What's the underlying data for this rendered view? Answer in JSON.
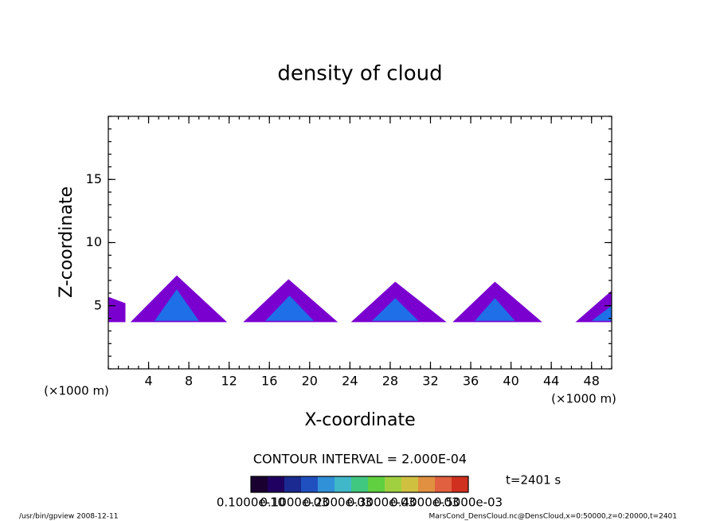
{
  "chart_data": {
    "type": "contour",
    "title": "density of cloud",
    "x_label": "X-coordinate",
    "y_label": "Z-coordinate",
    "x_unit": "(×1000 m)",
    "y_unit": "(×1000 m)",
    "xlim": [
      0,
      50
    ],
    "xticks": [
      4,
      8,
      12,
      16,
      20,
      24,
      28,
      32,
      36,
      40,
      44,
      48
    ],
    "ylim": [
      0,
      20
    ],
    "yticks": [
      5,
      10,
      15
    ],
    "cloud_color": "#7a00d0",
    "core_color": "#1f6fe8",
    "clouds": [
      {
        "x": [
          0,
          1.7,
          1.7,
          0
        ],
        "z": [
          3.7,
          3.7,
          5.2,
          5.7
        ]
      },
      {
        "x": [
          2.2,
          6.8,
          11.8
        ],
        "z": [
          3.7,
          7.4,
          3.7
        ]
      },
      {
        "x": [
          13.4,
          17.9,
          22.8
        ],
        "z": [
          3.7,
          7.1,
          3.7
        ]
      },
      {
        "x": [
          24.1,
          28.5,
          33.6
        ],
        "z": [
          3.7,
          6.9,
          3.7
        ]
      },
      {
        "x": [
          34.2,
          38.4,
          43.1
        ],
        "z": [
          3.7,
          6.9,
          3.7
        ]
      },
      {
        "x": [
          46.4,
          50,
          50
        ],
        "z": [
          3.7,
          6.2,
          3.7
        ]
      }
    ],
    "cores": [
      {
        "x": [
          4.6,
          6.8,
          9.0
        ],
        "z": [
          3.8,
          6.3,
          3.8
        ]
      },
      {
        "x": [
          15.6,
          18.0,
          20.4
        ],
        "z": [
          3.8,
          5.8,
          3.8
        ]
      },
      {
        "x": [
          26.2,
          28.5,
          30.8
        ],
        "z": [
          3.8,
          5.6,
          3.8
        ]
      },
      {
        "x": [
          36.4,
          38.4,
          40.4
        ],
        "z": [
          3.8,
          5.6,
          3.8
        ]
      },
      {
        "x": [
          48.0,
          50,
          50
        ],
        "z": [
          3.8,
          5.0,
          3.8
        ]
      }
    ],
    "contour_interval": "CONTOUR INTERVAL = 2.000E-04",
    "time_label": "t=2401 s",
    "colorbar_colors": [
      "#1a0030",
      "#200060",
      "#1a2a90",
      "#2050c0",
      "#3090d8",
      "#40b8c8",
      "#40c880",
      "#60d040",
      "#a0d040",
      "#d0c040",
      "#e09040",
      "#e06040",
      "#d03020"
    ],
    "colorbar_labels": [
      "0.1000e-10",
      "0.1000e-03",
      "0.2000e-03",
      "0.3000e-03",
      "0.4000e-03",
      "0.5000e-03"
    ],
    "footer_left": "/usr/bin/gpview   2008-12-11",
    "footer_right": "MarsCond_DensCloud.nc@DensCloud,x=0:50000,z=0:20000,t=2401"
  }
}
